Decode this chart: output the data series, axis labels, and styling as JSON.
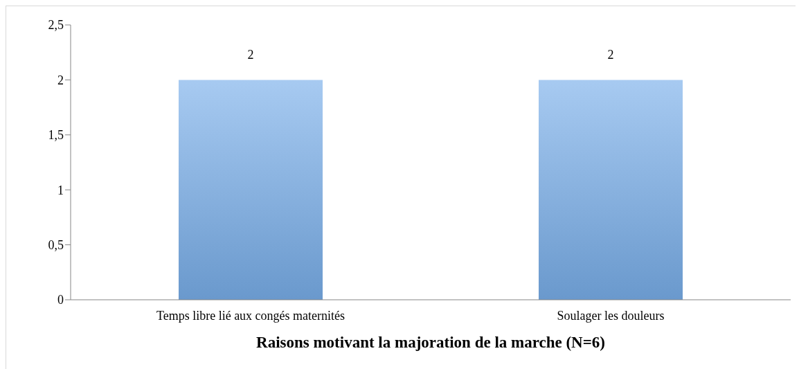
{
  "chart_data": {
    "type": "bar",
    "title": "Raisons motivant la majoration de la marche (N=6)",
    "categories": [
      "Temps libre lié aux congés maternités",
      "Soulager les douleurs"
    ],
    "values": [
      2,
      2
    ],
    "color": "#78aee9",
    "ylim": [
      0,
      2.5
    ],
    "yticks": [
      0,
      {
        "value": 0.5,
        "label": "0,5"
      },
      1,
      {
        "value": 1.5,
        "label": "1,5"
      },
      2,
      {
        "value": 2.5,
        "label": "2,5"
      }
    ],
    "data_labels": true,
    "grid": false,
    "legend": false
  }
}
